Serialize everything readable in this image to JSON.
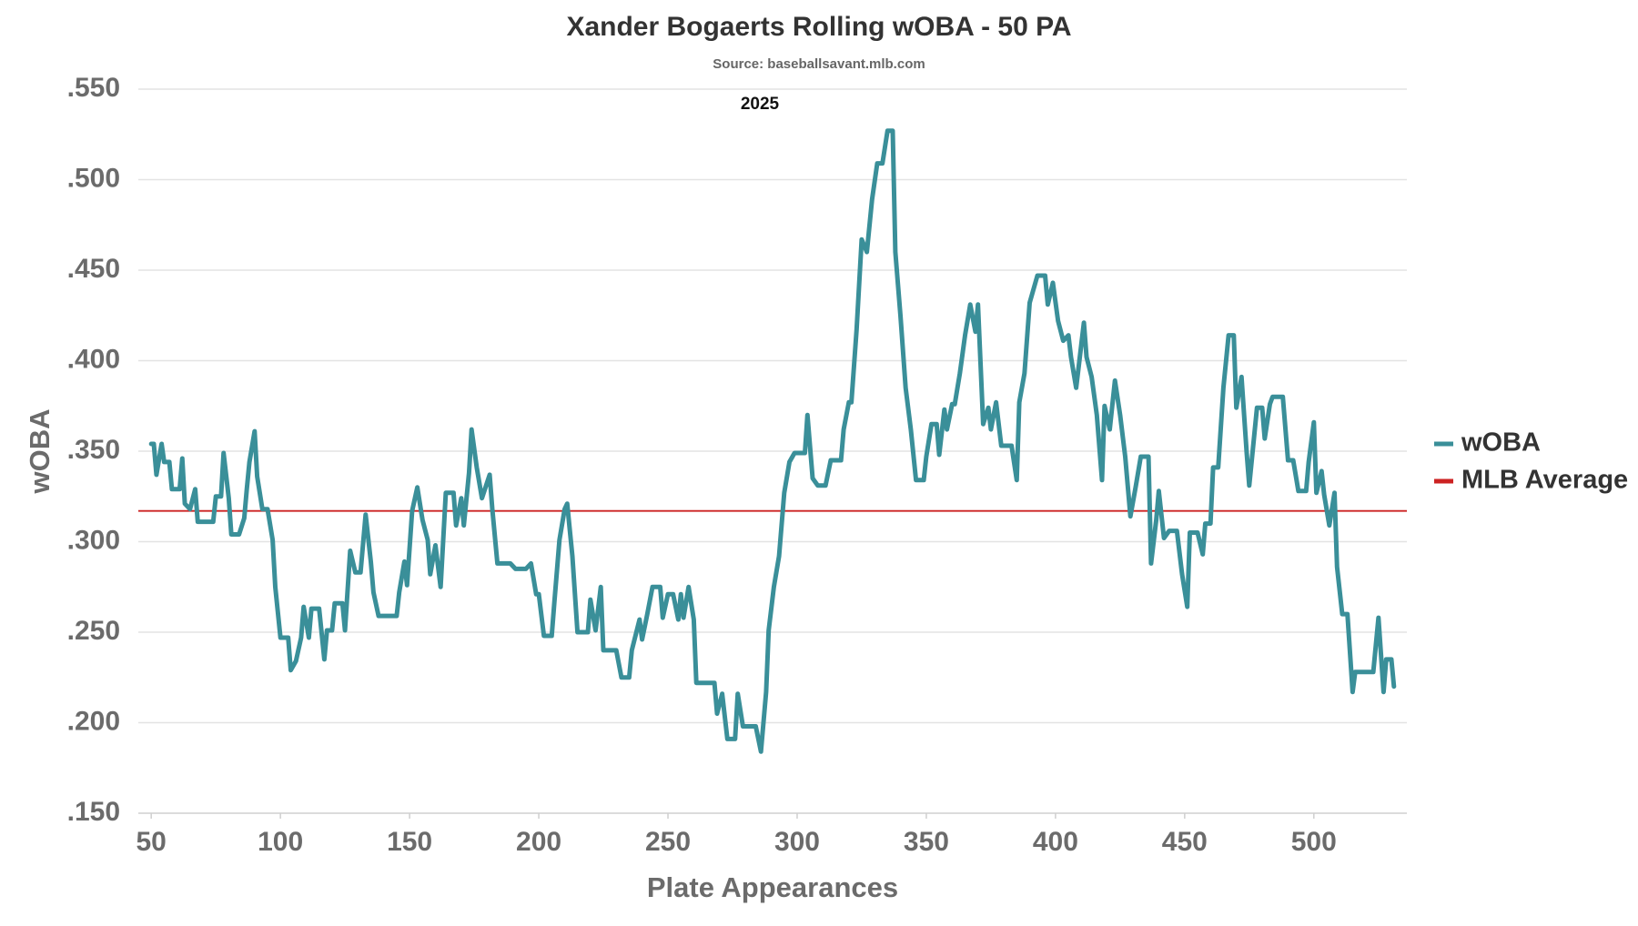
{
  "chart_data": {
    "type": "line",
    "title": "Xander Bogaerts Rolling wOBA - 50 PA",
    "subtitle": "Source: baseballsavant.mlb.com",
    "annotation": "2025",
    "x_label": "Plate Appearances",
    "y_label": "wOBA",
    "xlim": [
      45,
      536
    ],
    "xticks": [
      50,
      100,
      150,
      200,
      250,
      300,
      350,
      400,
      450,
      500
    ],
    "ylim": [
      0.15,
      0.55
    ],
    "yticks": [
      {
        "value": 0.15,
        "label": ".150"
      },
      {
        "value": 0.2,
        "label": ".200"
      },
      {
        "value": 0.25,
        "label": ".250"
      },
      {
        "value": 0.3,
        "label": ".300"
      },
      {
        "value": 0.35,
        "label": ".350"
      },
      {
        "value": 0.4,
        "label": ".400"
      },
      {
        "value": 0.45,
        "label": ".450"
      },
      {
        "value": 0.5,
        "label": ".500"
      },
      {
        "value": 0.55,
        "label": ".550"
      }
    ],
    "grid": true,
    "legend": "right",
    "x": [
      50,
      51,
      52,
      54,
      55,
      57,
      58,
      61,
      62,
      63,
      65,
      67,
      68,
      74,
      75,
      77,
      78,
      80,
      81,
      84,
      86,
      87,
      88,
      90,
      91,
      93,
      95,
      97,
      98,
      100,
      103,
      104,
      106,
      108,
      109,
      111,
      112,
      115,
      117,
      118,
      120,
      121,
      124,
      125,
      127,
      129,
      131,
      133,
      135,
      136,
      138,
      145,
      146,
      148,
      149,
      151,
      153,
      155,
      157,
      158,
      160,
      162,
      164,
      167,
      168,
      170,
      171,
      173,
      174,
      176,
      178,
      181,
      182,
      184,
      189,
      191,
      195,
      197,
      199,
      200,
      202,
      205,
      206,
      208,
      210,
      211,
      213,
      215,
      219,
      220,
      222,
      224,
      225,
      230,
      232,
      235,
      236,
      239,
      240,
      242,
      244,
      247,
      248,
      250,
      252,
      254,
      255,
      256,
      258,
      260,
      261,
      268,
      269,
      271,
      273,
      276,
      277,
      279,
      284,
      286,
      288,
      289,
      291,
      293,
      295,
      297,
      299,
      303,
      304,
      306,
      308,
      311,
      313,
      317,
      318,
      320,
      321,
      323,
      325,
      327,
      329,
      331,
      333,
      335,
      337,
      338,
      340,
      342,
      344,
      346,
      349,
      350,
      352,
      354,
      355,
      357,
      358,
      360,
      361,
      363,
      365,
      367,
      369,
      370,
      372,
      374,
      375,
      377,
      379,
      383,
      385,
      386,
      388,
      390,
      393,
      396,
      397,
      399,
      401,
      403,
      405,
      406,
      408,
      411,
      412,
      414,
      416,
      418,
      419,
      421,
      423,
      425,
      427,
      429,
      431,
      433,
      436,
      437,
      439,
      440,
      442,
      444,
      447,
      449,
      451,
      452,
      455,
      457,
      458,
      460,
      461,
      463,
      465,
      467,
      469,
      470,
      472,
      474,
      475,
      478,
      480,
      481,
      483,
      484,
      488,
      490,
      492,
      494,
      497,
      498,
      500,
      501,
      503,
      504,
      506,
      508,
      509,
      511,
      513,
      515,
      516,
      523,
      525,
      527,
      528,
      530,
      531
    ],
    "series": [
      {
        "name": "wOBA",
        "color": "#3a8f99",
        "values": [
          0.354,
          0.354,
          0.337,
          0.354,
          0.344,
          0.344,
          0.329,
          0.329,
          0.346,
          0.321,
          0.318,
          0.329,
          0.311,
          0.311,
          0.325,
          0.325,
          0.349,
          0.324,
          0.304,
          0.304,
          0.313,
          0.329,
          0.344,
          0.361,
          0.336,
          0.318,
          0.318,
          0.301,
          0.275,
          0.247,
          0.247,
          0.229,
          0.234,
          0.247,
          0.264,
          0.247,
          0.263,
          0.263,
          0.235,
          0.251,
          0.251,
          0.266,
          0.266,
          0.251,
          0.295,
          0.283,
          0.283,
          0.315,
          0.289,
          0.272,
          0.259,
          0.259,
          0.272,
          0.289,
          0.276,
          0.317,
          0.33,
          0.312,
          0.301,
          0.282,
          0.298,
          0.275,
          0.327,
          0.327,
          0.309,
          0.324,
          0.309,
          0.338,
          0.362,
          0.341,
          0.324,
          0.337,
          0.318,
          0.288,
          0.288,
          0.285,
          0.285,
          0.288,
          0.271,
          0.271,
          0.248,
          0.248,
          0.266,
          0.301,
          0.318,
          0.321,
          0.292,
          0.25,
          0.25,
          0.268,
          0.251,
          0.275,
          0.24,
          0.24,
          0.225,
          0.225,
          0.24,
          0.257,
          0.246,
          0.26,
          0.275,
          0.275,
          0.258,
          0.271,
          0.271,
          0.257,
          0.271,
          0.258,
          0.275,
          0.257,
          0.222,
          0.222,
          0.205,
          0.216,
          0.191,
          0.191,
          0.216,
          0.198,
          0.198,
          0.184,
          0.217,
          0.251,
          0.275,
          0.292,
          0.327,
          0.344,
          0.349,
          0.349,
          0.37,
          0.335,
          0.331,
          0.331,
          0.345,
          0.345,
          0.362,
          0.377,
          0.377,
          0.417,
          0.467,
          0.46,
          0.489,
          0.509,
          0.509,
          0.527,
          0.527,
          0.46,
          0.425,
          0.385,
          0.362,
          0.334,
          0.334,
          0.347,
          0.365,
          0.365,
          0.348,
          0.373,
          0.362,
          0.376,
          0.376,
          0.393,
          0.414,
          0.431,
          0.416,
          0.431,
          0.365,
          0.374,
          0.362,
          0.377,
          0.353,
          0.353,
          0.334,
          0.377,
          0.393,
          0.432,
          0.447,
          0.447,
          0.431,
          0.443,
          0.422,
          0.411,
          0.414,
          0.402,
          0.385,
          0.421,
          0.402,
          0.391,
          0.37,
          0.334,
          0.375,
          0.362,
          0.389,
          0.37,
          0.347,
          0.314,
          0.33,
          0.347,
          0.347,
          0.288,
          0.312,
          0.328,
          0.302,
          0.306,
          0.306,
          0.282,
          0.264,
          0.305,
          0.305,
          0.293,
          0.31,
          0.31,
          0.341,
          0.341,
          0.385,
          0.414,
          0.414,
          0.374,
          0.391,
          0.349,
          0.331,
          0.374,
          0.374,
          0.357,
          0.376,
          0.38,
          0.38,
          0.345,
          0.345,
          0.328,
          0.328,
          0.344,
          0.366,
          0.327,
          0.339,
          0.326,
          0.309,
          0.327,
          0.286,
          0.26,
          0.26,
          0.217,
          0.228,
          0.228,
          0.258,
          0.217,
          0.235,
          0.235,
          0.22
        ]
      }
    ],
    "reference_line": {
      "name": "MLB Average",
      "value": 0.317,
      "color": "#cc2222"
    }
  }
}
